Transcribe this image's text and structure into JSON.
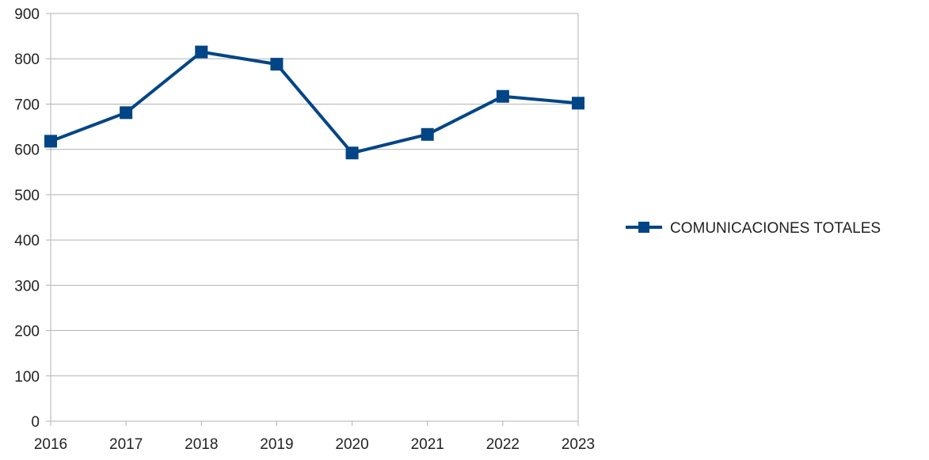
{
  "chart_data": {
    "type": "line",
    "title": "",
    "xlabel": "",
    "ylabel": "",
    "categories": [
      "2016",
      "2017",
      "2018",
      "2019",
      "2020",
      "2021",
      "2022",
      "2023"
    ],
    "ylim": [
      0,
      900
    ],
    "yticks": [
      0,
      100,
      200,
      300,
      400,
      500,
      600,
      700,
      800,
      900
    ],
    "grid": true,
    "legend_position": "right",
    "series": [
      {
        "name": "COMUNICACIONES TOTALES",
        "values": [
          618,
          681,
          815,
          788,
          592,
          633,
          717,
          702
        ],
        "color": "#004586",
        "marker": "square"
      }
    ],
    "colors": {
      "grid": "#b3b3b3",
      "axis": "#b3b3b3"
    }
  }
}
